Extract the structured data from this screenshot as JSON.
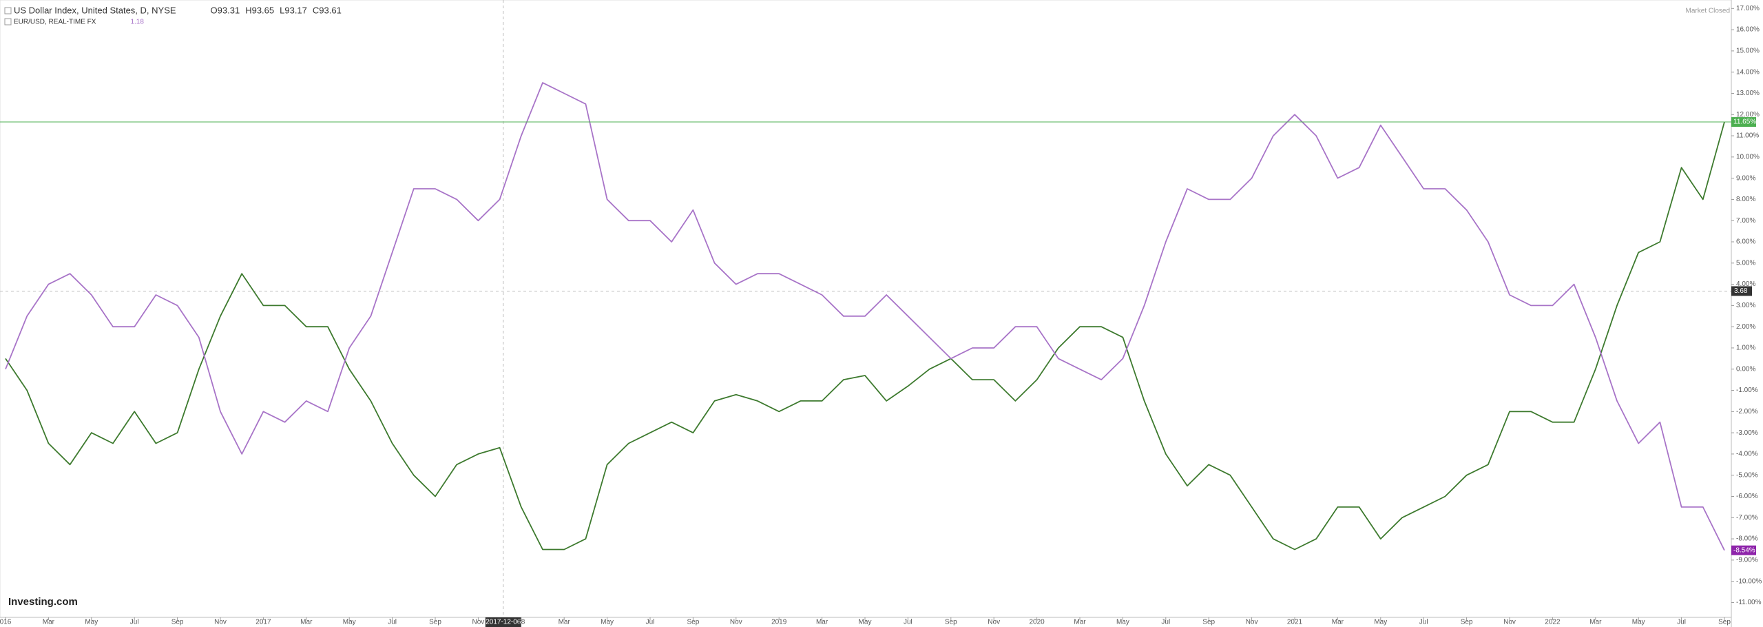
{
  "chart_data": {
    "type": "line",
    "x": [
      "2016-01",
      "2016-02",
      "2016-03",
      "2016-04",
      "2016-05",
      "2016-06",
      "2016-07",
      "2016-08",
      "2016-09",
      "2016-10",
      "2016-11",
      "2016-12",
      "2017-01",
      "2017-02",
      "2017-03",
      "2017-04",
      "2017-05",
      "2017-06",
      "2017-07",
      "2017-08",
      "2017-09",
      "2017-10",
      "2017-11",
      "2017-12",
      "2018-01",
      "2018-02",
      "2018-03",
      "2018-04",
      "2018-05",
      "2018-06",
      "2018-07",
      "2018-08",
      "2018-09",
      "2018-10",
      "2018-11",
      "2018-12",
      "2019-01",
      "2019-02",
      "2019-03",
      "2019-04",
      "2019-05",
      "2019-06",
      "2019-07",
      "2019-08",
      "2019-09",
      "2019-10",
      "2019-11",
      "2019-12",
      "2020-01",
      "2020-02",
      "2020-03",
      "2020-04",
      "2020-05",
      "2020-06",
      "2020-07",
      "2020-08",
      "2020-09",
      "2020-10",
      "2020-11",
      "2020-12",
      "2021-01",
      "2021-02",
      "2021-03",
      "2021-04",
      "2021-05",
      "2021-06",
      "2021-07",
      "2021-08",
      "2021-09",
      "2021-10",
      "2021-11",
      "2021-12",
      "2022-01",
      "2022-02",
      "2022-03",
      "2022-04",
      "2022-05",
      "2022-06",
      "2022-07",
      "2022-08",
      "2022-09"
    ],
    "series": [
      {
        "name": "US Dollar Index, United States, D, NYSE",
        "quote": [
          "O93.31",
          "H93.65",
          "L93.17",
          "C93.61"
        ],
        "color": "#3d7a2e",
        "last": {
          "value": 11.65,
          "label": "11.65%"
        },
        "last_color": "#4caf50",
        "values": [
          0.5,
          -1,
          -3.5,
          -4.5,
          -3,
          -3.5,
          -2,
          -3.5,
          -3,
          0,
          2.5,
          4.5,
          3,
          3,
          2,
          2,
          0,
          -1.5,
          -3.5,
          -5,
          -6,
          -4.5,
          -4,
          -3.7,
          -6.5,
          -8.5,
          -8.5,
          -8,
          -4.5,
          -3.5,
          -3,
          -2.5,
          -3,
          -1.5,
          -1.2,
          -1.5,
          -2,
          -1.5,
          -1.5,
          -0.5,
          -0.3,
          -1.5,
          -0.8,
          0,
          0.5,
          -0.5,
          -0.5,
          -1.5,
          -0.5,
          1,
          2,
          2,
          1.5,
          -1.5,
          -4,
          -5.5,
          -4.5,
          -5,
          -6.5,
          -8,
          -8.5,
          -8,
          -6.5,
          -6.5,
          -8,
          -7,
          -6.5,
          -6,
          -5,
          -4.5,
          -2,
          -2,
          -2.5,
          -2.5,
          0,
          3,
          5.5,
          6,
          9.5,
          8,
          11.65
        ]
      },
      {
        "name": "EUR/USD, REAL-TIME FX",
        "quote": [
          "1.18"
        ],
        "color": "#a874c8",
        "last": {
          "value": -8.54,
          "label": "-8.54%"
        },
        "last_color": "#8e24aa",
        "values": [
          0,
          2.5,
          4,
          4.5,
          3.5,
          2,
          2,
          3.5,
          3,
          1.5,
          -2,
          -4,
          -2,
          -2.5,
          -1.5,
          -2,
          1,
          2.5,
          5.5,
          8.5,
          8.5,
          8,
          7,
          8,
          11,
          13.5,
          13,
          12.5,
          8,
          7,
          7,
          6,
          7.5,
          5,
          4,
          4.5,
          4.5,
          4,
          3.5,
          2.5,
          2.5,
          3.5,
          2.5,
          1.5,
          0.5,
          1,
          1,
          2,
          2,
          0.5,
          0,
          -0.5,
          0.5,
          3,
          6,
          8.5,
          8,
          8,
          9,
          11,
          12,
          11,
          9,
          9.5,
          11.5,
          10,
          8.5,
          8.5,
          7.5,
          6,
          3.5,
          3,
          3,
          4,
          1.5,
          -1.5,
          -3.5,
          -2.5,
          -6.5,
          -6.5,
          -8.54
        ]
      }
    ],
    "ylim": [
      -11.7,
      17.4
    ],
    "yticks": [
      {
        "value": -11,
        "label": "-11.00%"
      },
      {
        "value": -10,
        "label": "-10.00%"
      },
      {
        "value": -9,
        "label": "-9.00%"
      },
      {
        "value": -8,
        "label": "-8.00%"
      },
      {
        "value": -7,
        "label": "-7.00%"
      },
      {
        "value": -6,
        "label": "-6.00%"
      },
      {
        "value": -5,
        "label": "-5.00%"
      },
      {
        "value": -4,
        "label": "-4.00%"
      },
      {
        "value": -3,
        "label": "-3.00%"
      },
      {
        "value": -2,
        "label": "-2.00%"
      },
      {
        "value": -1,
        "label": "-1.00%"
      },
      {
        "value": 0,
        "label": "0.00%"
      },
      {
        "value": 1,
        "label": "1.00%"
      },
      {
        "value": 2,
        "label": "2.00%"
      },
      {
        "value": 3,
        "label": "3.00%"
      },
      {
        "value": 4,
        "label": "4.00%"
      },
      {
        "value": 5,
        "label": "5.00%"
      },
      {
        "value": 6,
        "label": "6.00%"
      },
      {
        "value": 7,
        "label": "7.00%"
      },
      {
        "value": 8,
        "label": "8.00%"
      },
      {
        "value": 9,
        "label": "9.00%"
      },
      {
        "value": 10,
        "label": "10.00%"
      },
      {
        "value": 11,
        "label": "11.00%"
      },
      {
        "value": 12,
        "label": "12.00%"
      },
      {
        "value": 13,
        "label": "13.00%"
      },
      {
        "value": 14,
        "label": "14.00%"
      },
      {
        "value": 15,
        "label": "15.00%"
      },
      {
        "value": 16,
        "label": "16.00%"
      },
      {
        "value": 17,
        "label": "17.00%"
      }
    ],
    "xticks": [
      {
        "value": "2016-01",
        "label": "016"
      },
      {
        "value": "2016-03",
        "label": "Mar"
      },
      {
        "value": "2016-05",
        "label": "May"
      },
      {
        "value": "2016-07",
        "label": "Jul"
      },
      {
        "value": "2016-09",
        "label": "Sep"
      },
      {
        "value": "2016-11",
        "label": "Nov"
      },
      {
        "value": "2017-01",
        "label": "2017"
      },
      {
        "value": "2017-03",
        "label": "Mar"
      },
      {
        "value": "2017-05",
        "label": "May"
      },
      {
        "value": "2017-07",
        "label": "Jul"
      },
      {
        "value": "2017-09",
        "label": "Sep"
      },
      {
        "value": "2017-11",
        "label": "Nov"
      },
      {
        "value": "2018-01",
        "label": "18"
      },
      {
        "value": "2018-03",
        "label": "Mar"
      },
      {
        "value": "2018-05",
        "label": "May"
      },
      {
        "value": "2018-07",
        "label": "Jul"
      },
      {
        "value": "2018-09",
        "label": "Sep"
      },
      {
        "value": "2018-11",
        "label": "Nov"
      },
      {
        "value": "2019-01",
        "label": "2019"
      },
      {
        "value": "2019-03",
        "label": "Mar"
      },
      {
        "value": "2019-05",
        "label": "May"
      },
      {
        "value": "2019-07",
        "label": "Jul"
      },
      {
        "value": "2019-09",
        "label": "Sep"
      },
      {
        "value": "2019-11",
        "label": "Nov"
      },
      {
        "value": "2020-01",
        "label": "2020"
      },
      {
        "value": "2020-03",
        "label": "Mar"
      },
      {
        "value": "2020-05",
        "label": "May"
      },
      {
        "value": "2020-07",
        "label": "Jul"
      },
      {
        "value": "2020-09",
        "label": "Sep"
      },
      {
        "value": "2020-11",
        "label": "Nov"
      },
      {
        "value": "2021-01",
        "label": "2021"
      },
      {
        "value": "2021-03",
        "label": "Mar"
      },
      {
        "value": "2021-05",
        "label": "May"
      },
      {
        "value": "2021-07",
        "label": "Jul"
      },
      {
        "value": "2021-09",
        "label": "Sep"
      },
      {
        "value": "2021-11",
        "label": "Nov"
      },
      {
        "value": "2022-01",
        "label": "2022"
      },
      {
        "value": "2022-03",
        "label": "Mar"
      },
      {
        "value": "2022-05",
        "label": "May"
      },
      {
        "value": "2022-07",
        "label": "Jul"
      },
      {
        "value": "2022-09",
        "label": "Sep"
      }
    ],
    "crosshair": {
      "x": "2017-12-06",
      "y": {
        "value": 3.68,
        "label": "3.68"
      }
    },
    "status": "Market Closed",
    "brand": "Investing.com"
  }
}
